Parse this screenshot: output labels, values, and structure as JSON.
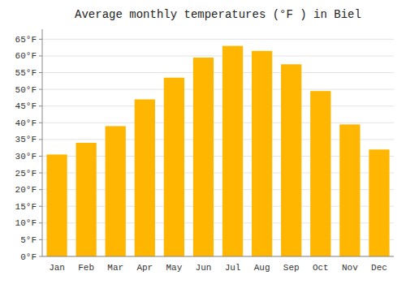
{
  "chart_data": {
    "type": "bar",
    "title": "Average monthly temperatures (°F ) in Biel",
    "categories": [
      "Jan",
      "Feb",
      "Mar",
      "Apr",
      "May",
      "Jun",
      "Jul",
      "Aug",
      "Sep",
      "Oct",
      "Nov",
      "Dec"
    ],
    "values": [
      30.5,
      34.0,
      39.0,
      47.0,
      53.5,
      59.5,
      63.0,
      61.5,
      57.5,
      49.5,
      39.5,
      32.0
    ],
    "color": "#FFB600",
    "ylim": [
      0,
      68
    ],
    "yticks": [
      {
        "value": 0,
        "label": "0°F"
      },
      {
        "value": 5,
        "label": "5°F"
      },
      {
        "value": 10,
        "label": "10°F"
      },
      {
        "value": 15,
        "label": "15°F"
      },
      {
        "value": 20,
        "label": "20°F"
      },
      {
        "value": 25,
        "label": "25°F"
      },
      {
        "value": 30,
        "label": "30°F"
      },
      {
        "value": 35,
        "label": "35°F"
      },
      {
        "value": 40,
        "label": "40°F"
      },
      {
        "value": 45,
        "label": "45°F"
      },
      {
        "value": 50,
        "label": "50°F"
      },
      {
        "value": 55,
        "label": "55°F"
      },
      {
        "value": 60,
        "label": "60°F"
      },
      {
        "value": 65,
        "label": "65°F"
      }
    ],
    "grid": true
  }
}
